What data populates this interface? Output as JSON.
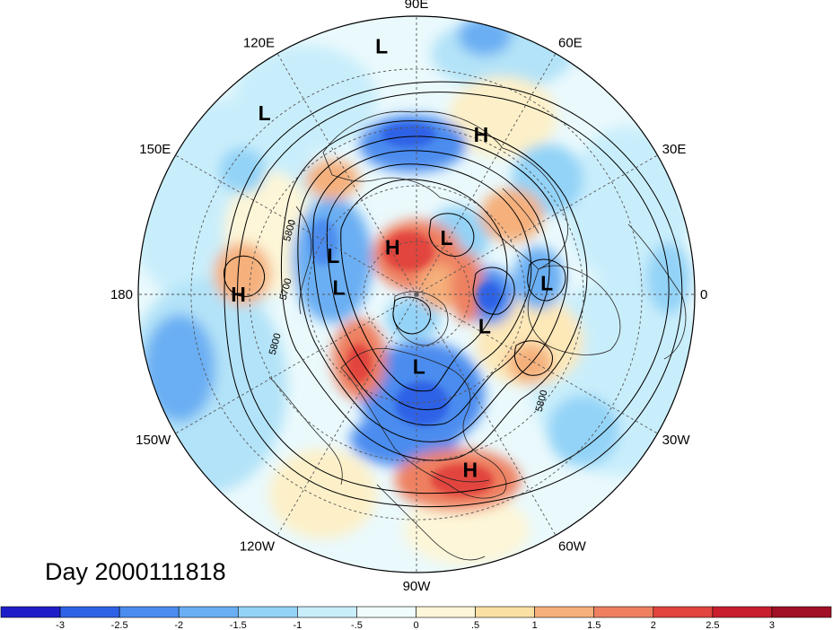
{
  "map": {
    "projection": "north-polar-stereographic",
    "longitude_labels": [
      {
        "text": "90E",
        "lon": 90
      },
      {
        "text": "60E",
        "lon": 60
      },
      {
        "text": "30E",
        "lon": 30
      },
      {
        "text": "0",
        "lon": 0
      },
      {
        "text": "30W",
        "lon": -30
      },
      {
        "text": "60W",
        "lon": -60
      },
      {
        "text": "90W",
        "lon": -90
      },
      {
        "text": "120W",
        "lon": -120
      },
      {
        "text": "150W",
        "lon": -150
      },
      {
        "text": "180",
        "lon": 180
      },
      {
        "text": "150E",
        "lon": 150
      },
      {
        "text": "120E",
        "lon": 120
      }
    ],
    "pressure_centers": [
      {
        "type": "L",
        "lon": 98,
        "colat": 0.9
      },
      {
        "type": "H",
        "lon": 68,
        "colat": 0.62
      },
      {
        "type": "L",
        "lon": 130,
        "colat": 0.85
      },
      {
        "type": "H",
        "lon": 180,
        "colat": 0.64
      },
      {
        "type": "L",
        "lon": 155,
        "colat": 0.33
      },
      {
        "type": "H",
        "lon": 117,
        "colat": 0.19
      },
      {
        "type": "L",
        "lon": 62,
        "colat": 0.23
      },
      {
        "type": "L",
        "lon": 175,
        "colat": 0.28
      },
      {
        "type": "L",
        "lon": 5,
        "colat": 0.47
      },
      {
        "type": "L",
        "lon": -25,
        "colat": 0.27
      },
      {
        "type": "L",
        "lon": -88,
        "colat": 0.26
      },
      {
        "type": "H",
        "lon": -73,
        "colat": 0.66
      }
    ],
    "contour_labels": [
      {
        "text": "5800",
        "lon": 153,
        "colat": 0.5
      },
      {
        "text": "5700",
        "lon": 178,
        "colat": 0.46
      },
      {
        "text": "5800",
        "lon": -160,
        "colat": 0.53
      },
      {
        "text": "5800",
        "lon": -40,
        "colat": 0.6
      }
    ]
  },
  "day_label": "Day 2000111818",
  "colorbar": {
    "colors": [
      "#1e1ec8",
      "#2e62e6",
      "#4b8cef",
      "#6aaff3",
      "#93d3f7",
      "#c9eefb",
      "#f0fbfd",
      "#fdf6d8",
      "#fbe0a4",
      "#f5b07b",
      "#ee8060",
      "#e2443e",
      "#c81e2d",
      "#a01026"
    ],
    "labels": [
      "-3",
      "-2.5",
      "-2",
      "-1.5",
      "-1",
      "-.5",
      "0",
      ".5",
      "1",
      "1.5",
      "2",
      "2.5",
      "3"
    ]
  }
}
